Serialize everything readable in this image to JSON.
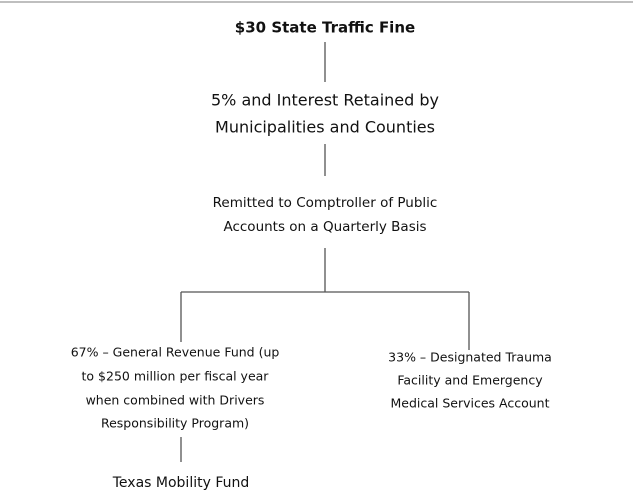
{
  "nodes": [
    {
      "lines": [
        "$30 State Traffic Fine"
      ]
    },
    {
      "lines": [
        "5% and Interest Retained by",
        "Municipalities and Counties"
      ]
    },
    {
      "lines": [
        "Remitted to Comptroller of Public",
        "Accounts on a Quarterly Basis"
      ]
    },
    {
      "lines": [
        "67% – General Revenue Fund (up",
        "to $250 million per fiscal year",
        "when combined with Drivers",
        "Responsibility Program)"
      ]
    },
    {
      "lines": [
        "33% – Designated Trauma",
        "Facility and Emergency",
        "Medical Services Account"
      ]
    },
    {
      "lines": [
        "Texas Mobility Fund"
      ]
    }
  ]
}
